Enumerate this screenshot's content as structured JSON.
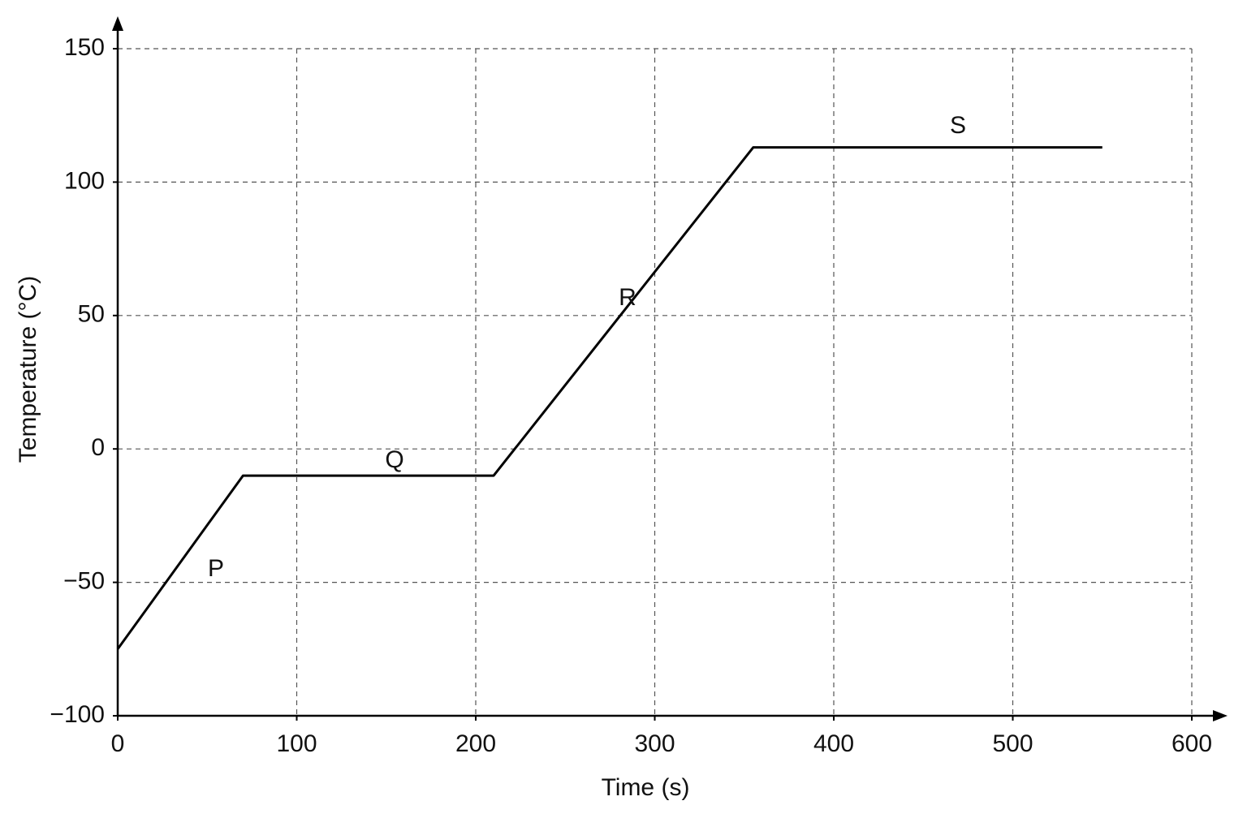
{
  "chart_data": {
    "type": "line",
    "xlabel": "Time (s)",
    "ylabel": "Temperature (°C)",
    "x": [
      0,
      70,
      210,
      355,
      550
    ],
    "values": [
      -75,
      -10,
      -10,
      113,
      113
    ],
    "color": "#000000",
    "annotations": [
      "P",
      "Q",
      "R",
      "S"
    ],
    "xlim": [
      0,
      600
    ],
    "xticks": [
      0,
      100,
      200,
      300,
      400,
      500,
      600
    ],
    "ylim": [
      -100,
      150
    ],
    "yticks": [
      {
        "value": -100,
        "label": "−100"
      },
      {
        "value": -50,
        "label": "−50"
      },
      0,
      50,
      100,
      150
    ],
    "grid": true
  }
}
